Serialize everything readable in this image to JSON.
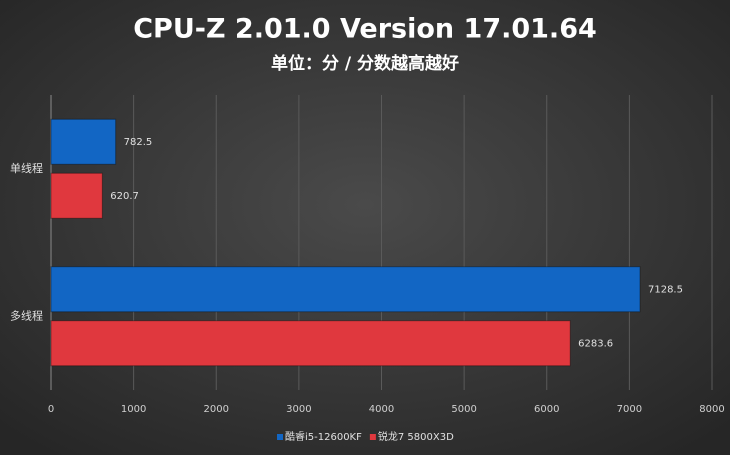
{
  "chart_data": {
    "type": "hbar",
    "title": "CPU-Z 2.01.0 Version 17.01.64",
    "subtitle": "单位：分 / 分数越高越好",
    "categories": [
      "单线程",
      "多线程"
    ],
    "series": [
      {
        "name": "酷睿i5-12600KF",
        "color": "#1266c4",
        "values": [
          782.5,
          7128.5
        ]
      },
      {
        "name": "锐龙7 5800X3D",
        "color": "#e0383e",
        "values": [
          620.7,
          6283.6
        ]
      }
    ],
    "xlim": [
      0,
      8000
    ],
    "xticks": [
      0,
      1000,
      2000,
      3000,
      4000,
      5000,
      6000,
      7000,
      8000
    ],
    "grid": true,
    "legend": "bottom"
  }
}
